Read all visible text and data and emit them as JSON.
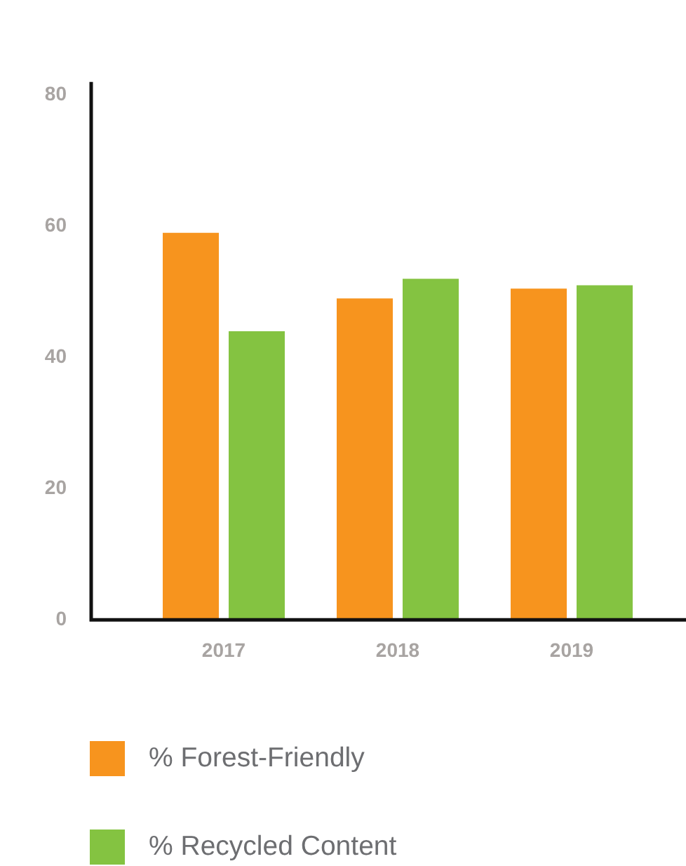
{
  "chart_data": {
    "type": "bar",
    "categories": [
      "2017",
      "2018",
      "2019"
    ],
    "series": [
      {
        "name": "% Forest-Friendly",
        "color": "#f7941e",
        "values": [
          59,
          49,
          50.5
        ]
      },
      {
        "name": "% Recycled Content",
        "color": "#84c341",
        "values": [
          44,
          52,
          51
        ]
      }
    ],
    "ylim": [
      0,
      82
    ],
    "yticks": [
      0,
      20,
      40,
      60,
      80
    ],
    "grid": false,
    "legend": "bottom"
  }
}
